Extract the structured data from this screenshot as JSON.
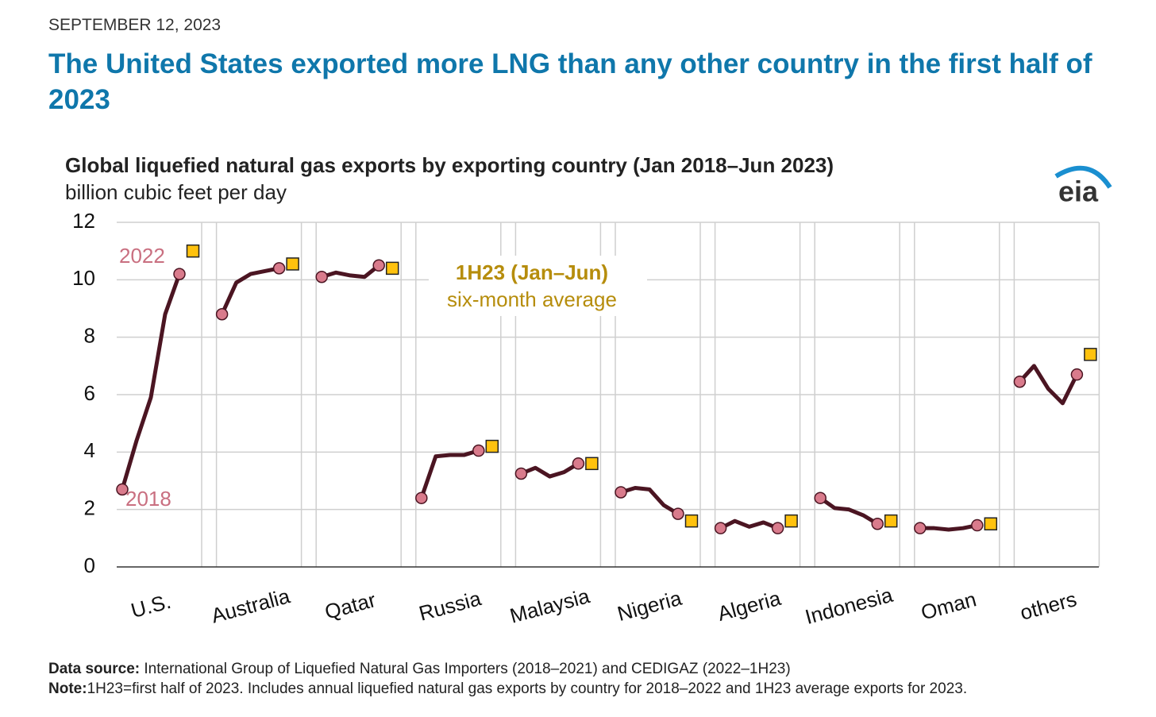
{
  "header": {
    "date": "SEPTEMBER 12, 2023",
    "headline": "The United States exported more LNG than any other country in the first half of 2023"
  },
  "chart_data": {
    "type": "line",
    "title": "Global liquefied natural gas exports by exporting country (Jan 2018–Jun 2023)",
    "subtitle": "billion cubic feet per day",
    "logo": "eia",
    "categories": [
      "U.S.",
      "Australia",
      "Qatar",
      "Russia",
      "Malaysia",
      "Nigeria",
      "Algeria",
      "Indonesia",
      "Oman",
      "others"
    ],
    "values": [
      [
        2.7,
        4.4,
        5.9,
        8.8,
        10.2
      ],
      [
        8.8,
        9.9,
        10.2,
        10.3,
        10.4
      ],
      [
        10.1,
        10.25,
        10.15,
        10.1,
        10.5
      ],
      [
        2.4,
        3.85,
        3.9,
        3.9,
        4.05
      ],
      [
        3.25,
        3.45,
        3.15,
        3.3,
        3.6
      ],
      [
        2.6,
        2.75,
        2.7,
        2.15,
        1.85
      ],
      [
        1.35,
        1.6,
        1.4,
        1.55,
        1.35
      ],
      [
        2.4,
        2.05,
        2.0,
        1.8,
        1.5
      ],
      [
        1.35,
        1.35,
        1.3,
        1.35,
        1.45
      ],
      [
        6.45,
        7.0,
        6.2,
        5.7,
        6.7
      ]
    ],
    "h1_2023": [
      11.0,
      10.55,
      10.4,
      4.2,
      3.6,
      1.6,
      1.6,
      1.6,
      1.5,
      7.4
    ],
    "line_color": "#4b1522",
    "marker_color": "#d97b8c",
    "square_color": "#ffc20e",
    "ylim": [
      0,
      12
    ],
    "yticks": [
      0,
      2,
      4,
      6,
      8,
      10,
      12
    ],
    "grid": true,
    "annotations": {
      "start": "2018",
      "end": "2022",
      "box_title": "1H23 (Jan–Jun)",
      "box_text": "six-month average"
    },
    "source_label": "Data source:",
    "source": " International Group of Liquefied Natural Gas Importers (2018–2021) and CEDIGAZ (2022–1H23)",
    "note_label": "Note:",
    "note": "1H23=first half of 2023. Includes annual liquefied natural gas exports by country for 2018–2022 and 1H23 average exports for 2023."
  }
}
